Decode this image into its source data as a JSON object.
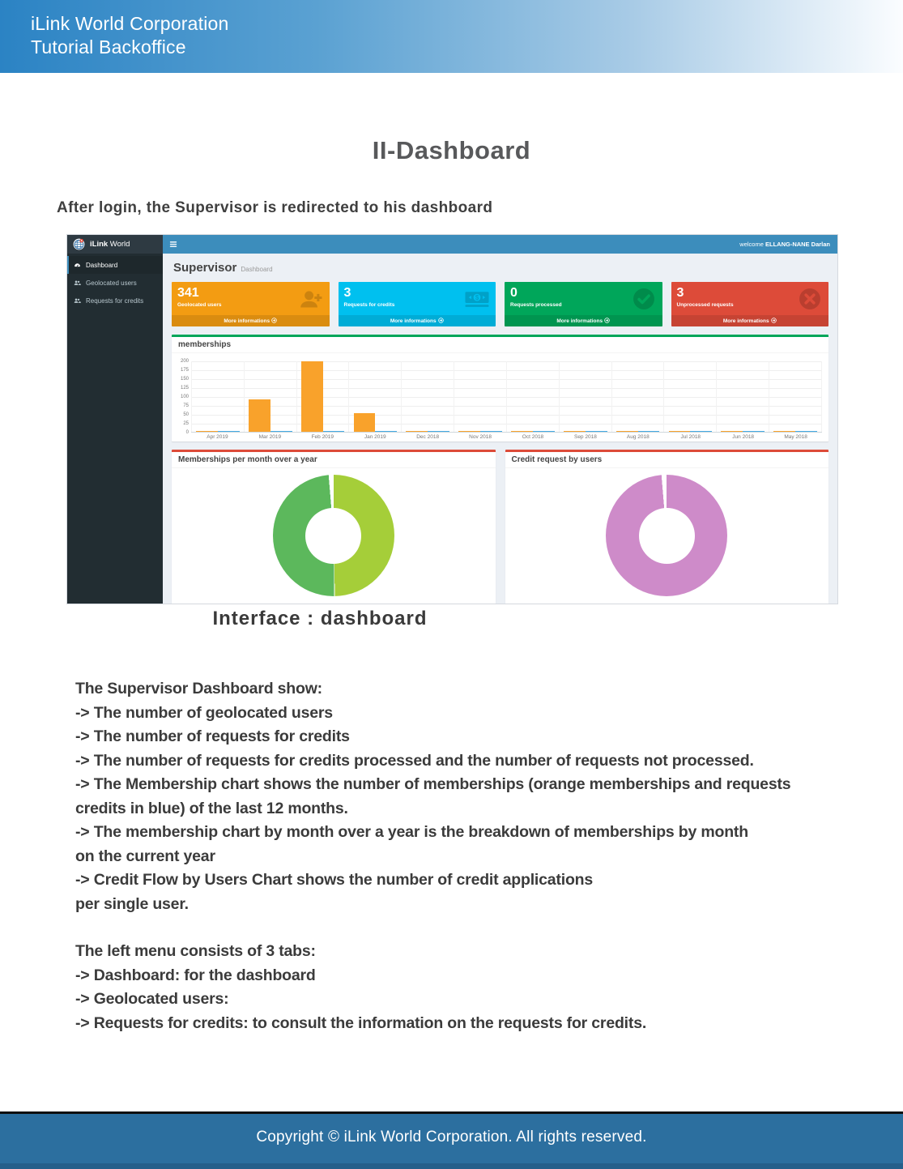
{
  "header": {
    "line1": "iLink World Corporation",
    "line2": "Tutorial Backoffice"
  },
  "title": "II-Dashboard",
  "intro": "After login, the Supervisor is redirected to his dashboard",
  "caption": "Interface : dashboard",
  "paragraphs": [
    {
      "lines": [
        "The Supervisor Dashboard show:",
        "-> The number of geolocated users",
        "-> The number of requests for credits",
        "-> The number of requests for credits processed and the number of requests not processed.",
        "-> The Membership chart shows the number of memberships (orange memberships and requests",
        "credits in blue) of the last 12 months.",
        "-> The membership chart by month over a year is the breakdown of memberships by month",
        "on the current year",
        "-> Credit Flow by Users Chart shows the number of credit applications",
        "per single user."
      ]
    },
    {
      "lines": [
        "The left menu consists of 3 tabs:",
        "-> Dashboard: for the dashboard",
        "-> Geolocated users:",
        "-> Requests for credits: to consult the information on the requests for credits."
      ]
    }
  ],
  "footer": {
    "text": "Copyright © iLink World Corporation. All rights reserved."
  },
  "dashboard": {
    "brand": {
      "name_bold": "iLink",
      "name_light": " World"
    },
    "navbar": {
      "welcome_prefix": "welcome ",
      "welcome_user": "ELLANG-NANE Darlan"
    },
    "sidebar": {
      "items": [
        {
          "label": "Dashboard",
          "icon": "dashboard-icon",
          "active": true
        },
        {
          "label": "Geolocated users",
          "icon": "users-icon",
          "active": false
        },
        {
          "label": "Requests for credits",
          "icon": "users-icon",
          "active": false
        }
      ]
    },
    "page_heading": {
      "title": "Supervisor",
      "subtitle": "Dashboard"
    },
    "stat_cards": [
      {
        "value": "341",
        "label": "Geolocated users",
        "color": "#f39c12",
        "icon": "user-plus-icon",
        "more_label": "More informations"
      },
      {
        "value": "3",
        "label": "Requests for credits",
        "color": "#00c0ef",
        "icon": "money-icon",
        "more_label": "More informations"
      },
      {
        "value": "0",
        "label": "Requests processed",
        "color": "#00a65a",
        "icon": "check-circle-icon",
        "more_label": "More informations"
      },
      {
        "value": "3",
        "label": "Unprocessed requests",
        "color": "#dd4b39",
        "icon": "x-circle-icon",
        "more_label": "More informations"
      }
    ],
    "chart_data": [
      {
        "type": "bar",
        "title": "memberships",
        "categories": [
          "Apr 2019",
          "Mar 2019",
          "Feb 2019",
          "Jan 2019",
          "Dec 2018",
          "Nov 2018",
          "Oct 2018",
          "Sep 2018",
          "Aug 2018",
          "Jul 2018",
          "Jun 2018",
          "May 2018"
        ],
        "series": [
          {
            "name": "memberships",
            "color": "#f9a22b",
            "values": [
              1,
              90,
              198,
              52,
              1,
              3,
              2,
              2,
              2,
              2,
              2,
              2
            ]
          },
          {
            "name": "requests credits",
            "color": "#45a9e2",
            "values": [
              3,
              1,
              1,
              1,
              1,
              1,
              2,
              2,
              2,
              2,
              2,
              2
            ]
          }
        ],
        "ylim": [
          0,
          200
        ],
        "yticks": [
          0,
          25,
          50,
          75,
          100,
          125,
          150,
          175,
          200
        ],
        "grid": true,
        "accent_color": "#00a65a"
      },
      {
        "type": "donut",
        "title": "Memberships per month over a year",
        "slices": [
          {
            "label": "slice-purple",
            "value": 1,
            "color": "#9b59b6"
          },
          {
            "label": "slice-yellow-green",
            "value": 50,
            "color": "#a5ce39"
          },
          {
            "label": "slice-green",
            "value": 49,
            "color": "#5cb85c"
          }
        ],
        "accent_color": "#dd4b39"
      },
      {
        "type": "donut",
        "title": "Credit request by users",
        "slices": [
          {
            "label": "slice-orchid",
            "value": 100,
            "color": "#ce8bc9"
          }
        ],
        "accent_color": "#dd4b39"
      }
    ]
  }
}
